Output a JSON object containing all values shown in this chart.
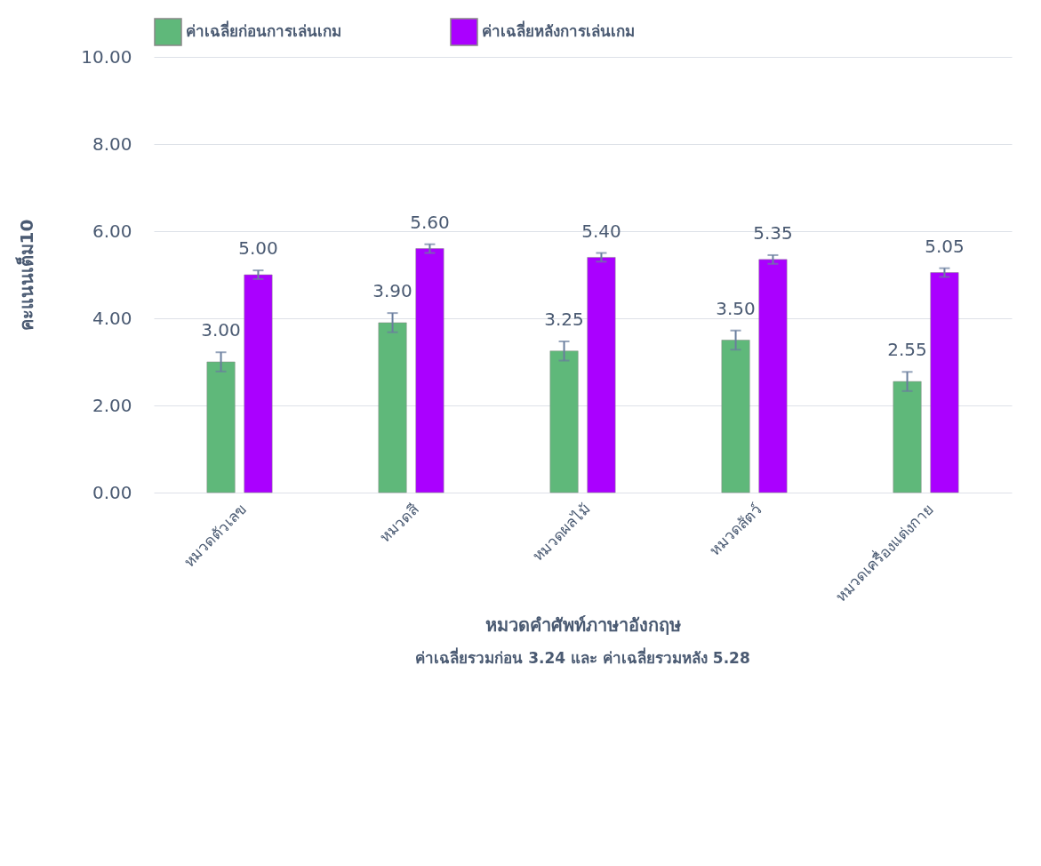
{
  "chart_data": {
    "type": "bar",
    "xlabel": "หมวดคำศัพท์ภาษาอังกฤษ",
    "ylabel": "คะแนนเต็ม10",
    "categories": [
      "หมวดตัวเลข",
      "หมวดสี",
      "หมวดผลไม้",
      "หมวดสัตว์",
      "หมวดเครื่องแต่งกาย"
    ],
    "series": [
      {
        "name": "ค่าเฉลี่ยก่อนการเล่นเกม",
        "color": "#5fb87a",
        "values": [
          3.0,
          3.9,
          3.25,
          3.5,
          2.55
        ],
        "errors": [
          0.22,
          0.22,
          0.22,
          0.22,
          0.22
        ],
        "value_labels": [
          "3.00",
          "3.90",
          "3.25",
          "3.50",
          "2.55"
        ]
      },
      {
        "name": "ค่าเฉลี่ยหลังการเล่นเกม",
        "color": "#aa00ff",
        "values": [
          5.0,
          5.6,
          5.4,
          5.35,
          5.05
        ],
        "errors": [
          0.1,
          0.1,
          0.1,
          0.1,
          0.1
        ],
        "value_labels": [
          "5.00",
          "5.60",
          "5.40",
          "5.35",
          "5.05"
        ]
      }
    ],
    "ylim": [
      0,
      10
    ],
    "yticks": [
      {
        "value": 0,
        "label": "0.00"
      },
      {
        "value": 2,
        "label": "2.00"
      },
      {
        "value": 4,
        "label": "4.00"
      },
      {
        "value": 6,
        "label": "6.00"
      },
      {
        "value": 8,
        "label": "8.00"
      },
      {
        "value": 10,
        "label": "10.00"
      }
    ],
    "grid": "y",
    "legend": "top",
    "annotations": [
      "ค่าเฉลี่ยรวมก่อน 3.24 และ ค่าเฉลี่ยรวมหลัง 5.28"
    ]
  }
}
